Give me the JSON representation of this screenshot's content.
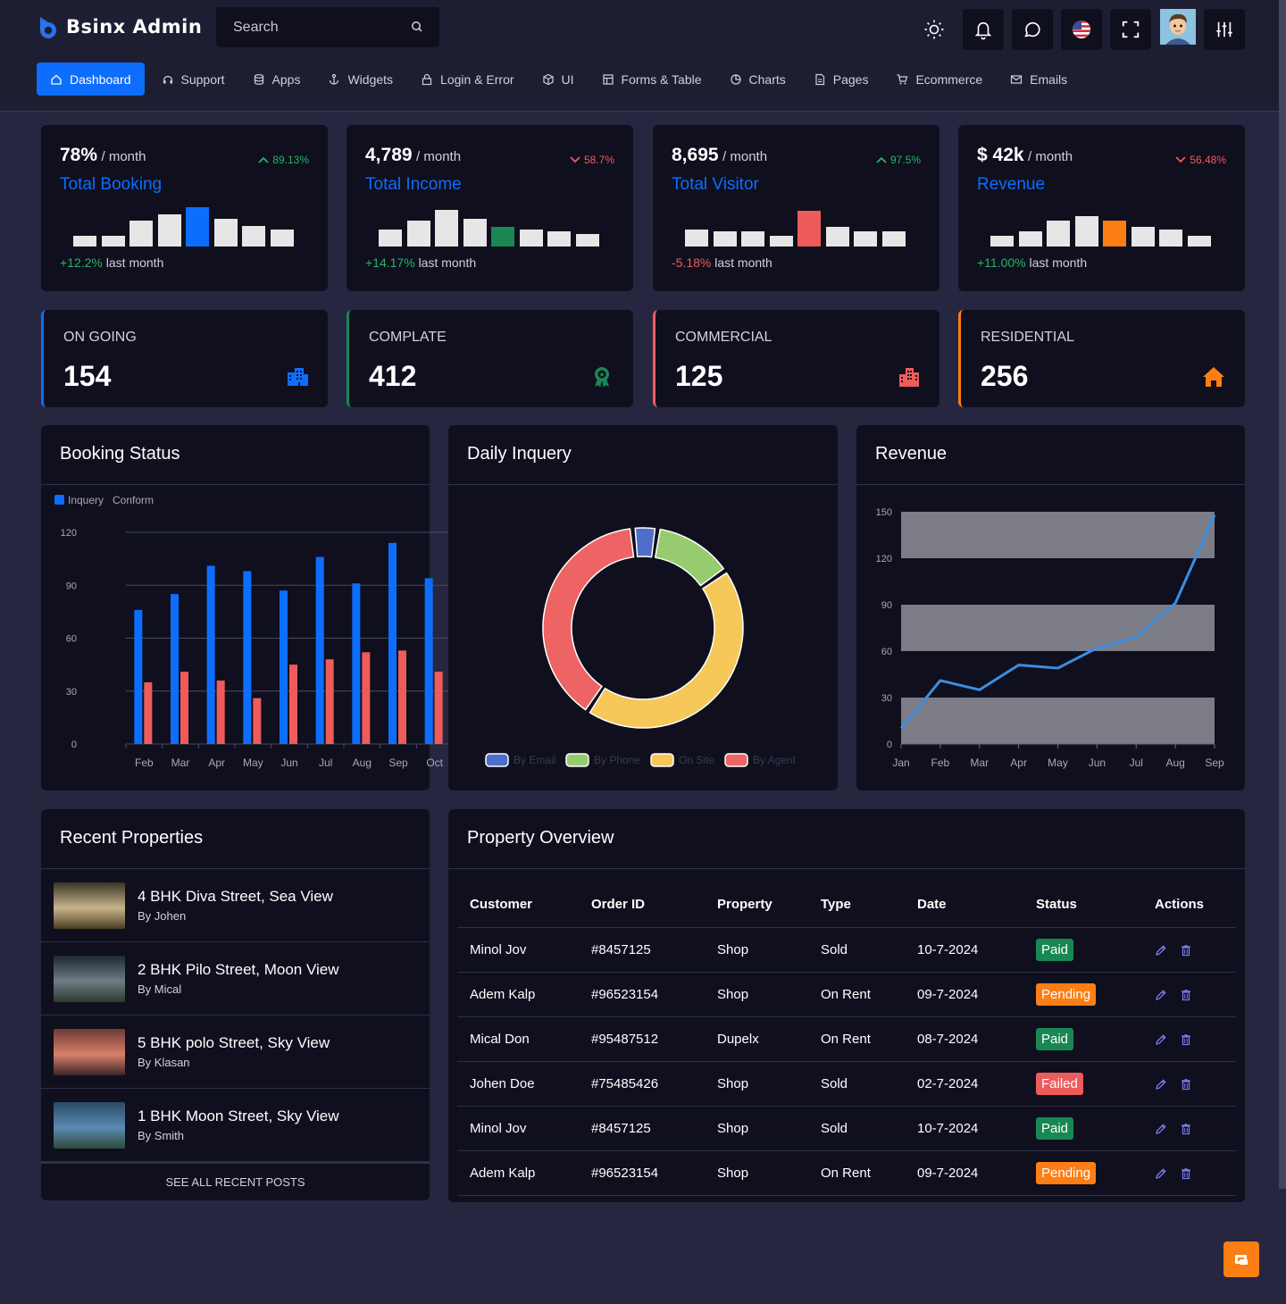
{
  "app": {
    "title": "Bsinx Admin"
  },
  "header": {
    "search_placeholder": "Search"
  },
  "nav": [
    {
      "label": "Dashboard",
      "icon": "home-icon",
      "active": true
    },
    {
      "label": "Support",
      "icon": "headset-icon"
    },
    {
      "label": "Apps",
      "icon": "database-icon"
    },
    {
      "label": "Widgets",
      "icon": "anchor-icon"
    },
    {
      "label": "Login & Error",
      "icon": "lock-icon"
    },
    {
      "label": "UI",
      "icon": "box-icon"
    },
    {
      "label": "Forms & Table",
      "icon": "table-icon"
    },
    {
      "label": "Charts",
      "icon": "pie-icon"
    },
    {
      "label": "Pages",
      "icon": "page-icon"
    },
    {
      "label": "Ecommerce",
      "icon": "cart-icon"
    },
    {
      "label": "Emails",
      "icon": "mail-icon"
    }
  ],
  "stats": [
    {
      "value": "78%",
      "per": "/ month",
      "title": "Total Booking",
      "trend": "89.13%",
      "trend_dir": "up",
      "change": "+12.2%",
      "change_label": "last month",
      "change_color": "#26b466",
      "bars": [
        12,
        12,
        29,
        36,
        44,
        31,
        23,
        19
      ],
      "highlight": 4,
      "highlight_color": "#0d6efd"
    },
    {
      "value": "4,789",
      "per": "/ month",
      "title": "Total Income",
      "trend": "58.7%",
      "trend_dir": "down",
      "change": "+14.17%",
      "change_label": "last month",
      "change_color": "#26b466",
      "bars": [
        19,
        29,
        41,
        31,
        22,
        19,
        17,
        14
      ],
      "highlight": 4,
      "highlight_color": "#198754"
    },
    {
      "value": "8,695",
      "per": "/ month",
      "title": "Total Visitor",
      "trend": "97.5%",
      "trend_dir": "up",
      "change": "-5.18%",
      "change_label": "last month",
      "change_color": "#ee5b5b",
      "bars": [
        19,
        17,
        17,
        12,
        40,
        22,
        17,
        17
      ],
      "highlight": 4,
      "highlight_color": "#ee5b5b"
    },
    {
      "value": "$ 42k",
      "per": "/ month",
      "title": "Revenue",
      "trend": "56.48%",
      "trend_dir": "down",
      "change": "+11.00%",
      "change_label": "last month",
      "change_color": "#26b466",
      "bars": [
        12,
        17,
        29,
        34,
        29,
        22,
        19,
        12
      ],
      "highlight": 4,
      "highlight_color": "#fd7e14"
    }
  ],
  "kpis": [
    {
      "label": "ON GOING",
      "value": "154",
      "color": "#0d6efd",
      "icon": "building-icon"
    },
    {
      "label": "COMPLATE",
      "value": "412",
      "color": "#198754",
      "icon": "award-icon"
    },
    {
      "label": "COMMERCIAL",
      "value": "125",
      "color": "#ee5b5b",
      "icon": "city-icon"
    },
    {
      "label": "RESIDENTIAL",
      "value": "256",
      "color": "#fd7e14",
      "icon": "house-icon"
    }
  ],
  "panels": {
    "booking_title": "Booking Status",
    "daily_title": "Daily Inquery",
    "revenue_title": "Revenue",
    "recent_title": "Recent Properties",
    "overview_title": "Property Overview"
  },
  "chart_data": [
    {
      "type": "bar",
      "categories": [
        "Feb",
        "Mar",
        "Apr",
        "May",
        "Jun",
        "Jul",
        "Aug",
        "Sep",
        "Oct"
      ],
      "series": [
        {
          "name": "Inquery",
          "color": "#0d6efd",
          "values": [
            76,
            85,
            101,
            98,
            87,
            106,
            91,
            114,
            94
          ]
        },
        {
          "name": "Conform",
          "color": "#ee5b5b",
          "values": [
            35,
            41,
            36,
            26,
            45,
            48,
            52,
            53,
            41
          ]
        }
      ],
      "ylim": [
        0,
        120
      ],
      "yticks": [
        0,
        30,
        60,
        90,
        120
      ],
      "legend": "top-left",
      "grid": true
    },
    {
      "type": "pie",
      "donut": true,
      "categories": [
        "By Email",
        "By Phone",
        "On Site",
        "By Agent"
      ],
      "values": [
        4,
        13,
        44,
        39
      ],
      "colors": [
        "#4e6ecb",
        "#96cc6f",
        "#f6c859",
        "#ee6464"
      ],
      "legend": "bottom"
    },
    {
      "type": "line",
      "x": [
        "Jan",
        "Feb",
        "Mar",
        "Apr",
        "May",
        "Jun",
        "Jul",
        "Aug",
        "Sep"
      ],
      "series": [
        {
          "color": "#3b8ee3",
          "values": [
            10,
            41,
            35,
            51,
            49,
            62,
            69,
            91,
            148
          ]
        }
      ],
      "ylim": [
        0,
        150
      ],
      "yticks": [
        0,
        30,
        60,
        90,
        120,
        150
      ],
      "bands": [
        [
          0,
          30
        ],
        [
          60,
          90
        ],
        [
          120,
          150
        ]
      ],
      "grid": false
    }
  ],
  "recent": [
    {
      "title": "4 BHK Diva Street, Sea View",
      "by": "By Johen",
      "thumb": [
        "#3a3226",
        "#c8b48c",
        "#4a3e22"
      ]
    },
    {
      "title": "2 BHK Pilo Street, Moon View",
      "by": "By Mical",
      "thumb": [
        "#1e2830",
        "#6e7c86",
        "#2e3a2c"
      ]
    },
    {
      "title": "5 BHK polo Street, Sky View",
      "by": "By Klasan",
      "thumb": [
        "#6e3a36",
        "#d8806a",
        "#3a2428"
      ]
    },
    {
      "title": "1 BHK Moon Street, Sky View",
      "by": "By Smith",
      "thumb": [
        "#2a4a66",
        "#5a8ab2",
        "#2e4a3a"
      ]
    }
  ],
  "recent_see_all": "SEE ALL RECENT POSTS",
  "table": {
    "headers": [
      "Customer",
      "Order ID",
      "Property",
      "Type",
      "Date",
      "Status",
      "Actions"
    ],
    "rows": [
      {
        "customer": "Minol Jov",
        "order": "#8457125",
        "property": "Shop",
        "type": "Sold",
        "date": "10-7-2024",
        "status": "Paid",
        "status_kind": "paid"
      },
      {
        "customer": "Adem Kalp",
        "order": "#96523154",
        "property": "Shop",
        "type": "On Rent",
        "date": "09-7-2024",
        "status": "Pending",
        "status_kind": "pending"
      },
      {
        "customer": "Mical Don",
        "order": "#95487512",
        "property": "Dupelx",
        "type": "On Rent",
        "date": "08-7-2024",
        "status": "Paid",
        "status_kind": "paid"
      },
      {
        "customer": "Johen Doe",
        "order": "#75485426",
        "property": "Shop",
        "type": "Sold",
        "date": "02-7-2024",
        "status": "Failed",
        "status_kind": "failed"
      },
      {
        "customer": "Minol Jov",
        "order": "#8457125",
        "property": "Shop",
        "type": "Sold",
        "date": "10-7-2024",
        "status": "Paid",
        "status_kind": "paid"
      },
      {
        "customer": "Adem Kalp",
        "order": "#96523154",
        "property": "Shop",
        "type": "On Rent",
        "date": "09-7-2024",
        "status": "Pending",
        "status_kind": "pending"
      }
    ]
  }
}
